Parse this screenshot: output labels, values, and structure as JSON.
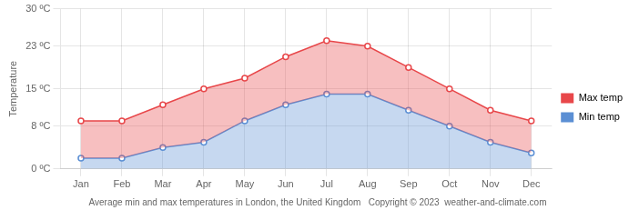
{
  "chart_data": {
    "type": "area",
    "title": "Average min and max temperatures in London, the United Kingdom   Copyright © 2023  weather-and-climate.com",
    "categories": [
      "Jan",
      "Feb",
      "Mar",
      "Apr",
      "May",
      "Jun",
      "Jul",
      "Aug",
      "Sep",
      "Oct",
      "Nov",
      "Dec"
    ],
    "series": [
      {
        "name": "Max temp",
        "color": "#e8474a",
        "values": [
          9,
          9,
          12,
          15,
          17,
          21,
          24,
          23,
          19,
          15,
          11,
          9
        ]
      },
      {
        "name": "Min temp",
        "color": "#5b8fd4",
        "values": [
          2,
          2,
          4,
          5,
          9,
          12,
          14,
          14,
          11,
          8,
          5,
          3
        ]
      }
    ],
    "ylabel": "Temperature",
    "ylim": [
      0,
      30
    ],
    "yticks": [
      {
        "value": 0,
        "label": "0 ºC"
      },
      {
        "value": 8,
        "label": "8 ºC"
      },
      {
        "value": 15,
        "label": "15 ºC"
      },
      {
        "value": 23,
        "label": "23 ºC"
      },
      {
        "value": 30,
        "label": "30 ºC"
      }
    ],
    "grid": true,
    "legend": "right",
    "marker": "circle"
  }
}
